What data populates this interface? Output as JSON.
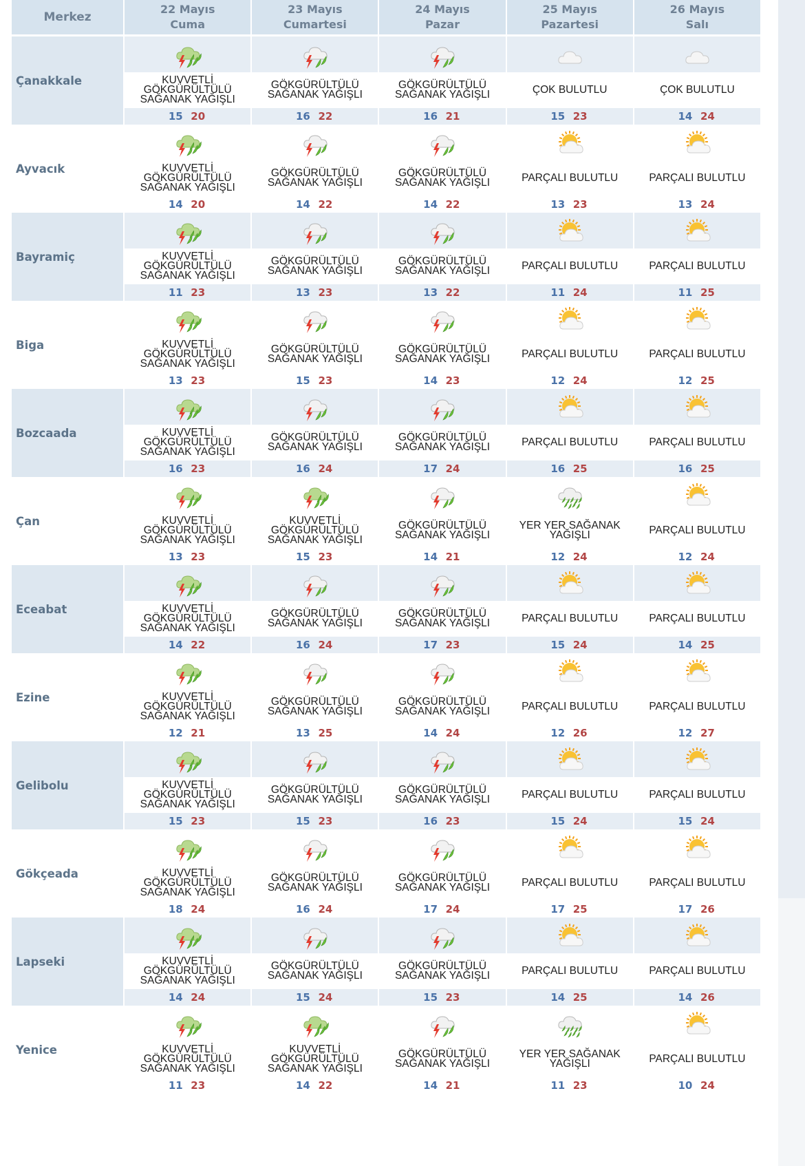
{
  "header": {
    "merkez": "Merkez",
    "days": [
      {
        "date": "22 Mayıs",
        "weekday": "Cuma"
      },
      {
        "date": "23 Mayıs",
        "weekday": "Cumartesi"
      },
      {
        "date": "24 Mayıs",
        "weekday": "Pazar"
      },
      {
        "date": "25 Mayıs",
        "weekday": "Pazartesi"
      },
      {
        "date": "26 Mayıs",
        "weekday": "Salı"
      }
    ]
  },
  "icons": {
    "heavy_thunder_shower": "heavy-thunder-shower-icon",
    "thunder_shower": "thunder-shower-icon",
    "mostly_cloudy": "mostly-cloudy-icon",
    "partly_cloudy": "partly-cloudy-icon",
    "scattered_showers": "scattered-showers-icon"
  },
  "colors": {
    "header_bg": "#d6e3ee",
    "alt_row_bg": "#e6edf4",
    "min_temp": "#4a72a8",
    "max_temp": "#b24545",
    "city_text": "#5c7389"
  },
  "rows": [
    {
      "city": "Çanakkale",
      "days": [
        {
          "icon": "heavy_thunder_shower",
          "desc": [
            "KUVVETLİ",
            "GÖKGÜRÜLTÜLÜ",
            "SAĞANAK YAĞIŞLI"
          ],
          "min": "15",
          "max": "20"
        },
        {
          "icon": "thunder_shower",
          "desc": [
            "GÖKGÜRÜLTÜLÜ",
            "SAĞANAK YAĞIŞLI"
          ],
          "min": "16",
          "max": "22"
        },
        {
          "icon": "thunder_shower",
          "desc": [
            "GÖKGÜRÜLTÜLÜ",
            "SAĞANAK YAĞIŞLI"
          ],
          "min": "16",
          "max": "21"
        },
        {
          "icon": "mostly_cloudy",
          "desc": [
            "ÇOK BULUTLU"
          ],
          "min": "15",
          "max": "23"
        },
        {
          "icon": "mostly_cloudy",
          "desc": [
            "ÇOK BULUTLU"
          ],
          "min": "14",
          "max": "24"
        }
      ]
    },
    {
      "city": "Ayvacık",
      "days": [
        {
          "icon": "heavy_thunder_shower",
          "desc": [
            "KUVVETLİ",
            "GÖKGÜRÜLTÜLÜ",
            "SAĞANAK YAĞIŞLI"
          ],
          "min": "14",
          "max": "20"
        },
        {
          "icon": "thunder_shower",
          "desc": [
            "GÖKGÜRÜLTÜLÜ",
            "SAĞANAK YAĞIŞLI"
          ],
          "min": "14",
          "max": "22"
        },
        {
          "icon": "thunder_shower",
          "desc": [
            "GÖKGÜRÜLTÜLÜ",
            "SAĞANAK YAĞIŞLI"
          ],
          "min": "14",
          "max": "22"
        },
        {
          "icon": "partly_cloudy",
          "desc": [
            "PARÇALI BULUTLU"
          ],
          "min": "13",
          "max": "23"
        },
        {
          "icon": "partly_cloudy",
          "desc": [
            "PARÇALI BULUTLU"
          ],
          "min": "13",
          "max": "24"
        }
      ]
    },
    {
      "city": "Bayramiç",
      "days": [
        {
          "icon": "heavy_thunder_shower",
          "desc": [
            "KUVVETLİ",
            "GÖKGÜRÜLTÜLÜ",
            "SAĞANAK YAĞIŞLI"
          ],
          "min": "11",
          "max": "23"
        },
        {
          "icon": "thunder_shower",
          "desc": [
            "GÖKGÜRÜLTÜLÜ",
            "SAĞANAK YAĞIŞLI"
          ],
          "min": "13",
          "max": "23"
        },
        {
          "icon": "thunder_shower",
          "desc": [
            "GÖKGÜRÜLTÜLÜ",
            "SAĞANAK YAĞIŞLI"
          ],
          "min": "13",
          "max": "22"
        },
        {
          "icon": "partly_cloudy",
          "desc": [
            "PARÇALI BULUTLU"
          ],
          "min": "11",
          "max": "24"
        },
        {
          "icon": "partly_cloudy",
          "desc": [
            "PARÇALI BULUTLU"
          ],
          "min": "11",
          "max": "25"
        }
      ]
    },
    {
      "city": "Biga",
      "days": [
        {
          "icon": "heavy_thunder_shower",
          "desc": [
            "KUVVETLİ",
            "GÖKGÜRÜLTÜLÜ",
            "SAĞANAK YAĞIŞLI"
          ],
          "min": "13",
          "max": "23"
        },
        {
          "icon": "thunder_shower",
          "desc": [
            "GÖKGÜRÜLTÜLÜ",
            "SAĞANAK YAĞIŞLI"
          ],
          "min": "15",
          "max": "23"
        },
        {
          "icon": "thunder_shower",
          "desc": [
            "GÖKGÜRÜLTÜLÜ",
            "SAĞANAK YAĞIŞLI"
          ],
          "min": "14",
          "max": "23"
        },
        {
          "icon": "partly_cloudy",
          "desc": [
            "PARÇALI BULUTLU"
          ],
          "min": "12",
          "max": "24"
        },
        {
          "icon": "partly_cloudy",
          "desc": [
            "PARÇALI BULUTLU"
          ],
          "min": "12",
          "max": "25"
        }
      ]
    },
    {
      "city": "Bozcaada",
      "days": [
        {
          "icon": "heavy_thunder_shower",
          "desc": [
            "KUVVETLİ",
            "GÖKGÜRÜLTÜLÜ",
            "SAĞANAK YAĞIŞLI"
          ],
          "min": "16",
          "max": "23"
        },
        {
          "icon": "thunder_shower",
          "desc": [
            "GÖKGÜRÜLTÜLÜ",
            "SAĞANAK YAĞIŞLI"
          ],
          "min": "16",
          "max": "24"
        },
        {
          "icon": "thunder_shower",
          "desc": [
            "GÖKGÜRÜLTÜLÜ",
            "SAĞANAK YAĞIŞLI"
          ],
          "min": "17",
          "max": "24"
        },
        {
          "icon": "partly_cloudy",
          "desc": [
            "PARÇALI BULUTLU"
          ],
          "min": "16",
          "max": "25"
        },
        {
          "icon": "partly_cloudy",
          "desc": [
            "PARÇALI BULUTLU"
          ],
          "min": "16",
          "max": "25"
        }
      ]
    },
    {
      "city": "Çan",
      "days": [
        {
          "icon": "heavy_thunder_shower",
          "desc": [
            "KUVVETLİ",
            "GÖKGÜRÜLTÜLÜ",
            "SAĞANAK YAĞIŞLI"
          ],
          "min": "13",
          "max": "23"
        },
        {
          "icon": "heavy_thunder_shower",
          "desc": [
            "KUVVETLİ",
            "GÖKGÜRÜLTÜLÜ",
            "SAĞANAK YAĞIŞLI"
          ],
          "min": "15",
          "max": "23"
        },
        {
          "icon": "thunder_shower",
          "desc": [
            "GÖKGÜRÜLTÜLÜ",
            "SAĞANAK YAĞIŞLI"
          ],
          "min": "14",
          "max": "21"
        },
        {
          "icon": "scattered_showers",
          "desc": [
            "YER YER SAĞANAK",
            "YAĞIŞLI"
          ],
          "min": "12",
          "max": "24"
        },
        {
          "icon": "partly_cloudy",
          "desc": [
            "PARÇALI BULUTLU"
          ],
          "min": "12",
          "max": "24"
        }
      ]
    },
    {
      "city": "Eceabat",
      "days": [
        {
          "icon": "heavy_thunder_shower",
          "desc": [
            "KUVVETLİ",
            "GÖKGÜRÜLTÜLÜ",
            "SAĞANAK YAĞIŞLI"
          ],
          "min": "14",
          "max": "22"
        },
        {
          "icon": "thunder_shower",
          "desc": [
            "GÖKGÜRÜLTÜLÜ",
            "SAĞANAK YAĞIŞLI"
          ],
          "min": "16",
          "max": "24"
        },
        {
          "icon": "thunder_shower",
          "desc": [
            "GÖKGÜRÜLTÜLÜ",
            "SAĞANAK YAĞIŞLI"
          ],
          "min": "17",
          "max": "23"
        },
        {
          "icon": "partly_cloudy",
          "desc": [
            "PARÇALI BULUTLU"
          ],
          "min": "15",
          "max": "24"
        },
        {
          "icon": "partly_cloudy",
          "desc": [
            "PARÇALI BULUTLU"
          ],
          "min": "14",
          "max": "25"
        }
      ]
    },
    {
      "city": "Ezine",
      "days": [
        {
          "icon": "heavy_thunder_shower",
          "desc": [
            "KUVVETLİ",
            "GÖKGÜRÜLTÜLÜ",
            "SAĞANAK YAĞIŞLI"
          ],
          "min": "12",
          "max": "21"
        },
        {
          "icon": "thunder_shower",
          "desc": [
            "GÖKGÜRÜLTÜLÜ",
            "SAĞANAK YAĞIŞLI"
          ],
          "min": "13",
          "max": "25"
        },
        {
          "icon": "thunder_shower",
          "desc": [
            "GÖKGÜRÜLTÜLÜ",
            "SAĞANAK YAĞIŞLI"
          ],
          "min": "14",
          "max": "24"
        },
        {
          "icon": "partly_cloudy",
          "desc": [
            "PARÇALI BULUTLU"
          ],
          "min": "12",
          "max": "26"
        },
        {
          "icon": "partly_cloudy",
          "desc": [
            "PARÇALI BULUTLU"
          ],
          "min": "12",
          "max": "27"
        }
      ]
    },
    {
      "city": "Gelibolu",
      "days": [
        {
          "icon": "heavy_thunder_shower",
          "desc": [
            "KUVVETLİ",
            "GÖKGÜRÜLTÜLÜ",
            "SAĞANAK YAĞIŞLI"
          ],
          "min": "15",
          "max": "23"
        },
        {
          "icon": "thunder_shower",
          "desc": [
            "GÖKGÜRÜLTÜLÜ",
            "SAĞANAK YAĞIŞLI"
          ],
          "min": "15",
          "max": "23"
        },
        {
          "icon": "thunder_shower",
          "desc": [
            "GÖKGÜRÜLTÜLÜ",
            "SAĞANAK YAĞIŞLI"
          ],
          "min": "16",
          "max": "23"
        },
        {
          "icon": "partly_cloudy",
          "desc": [
            "PARÇALI BULUTLU"
          ],
          "min": "15",
          "max": "24"
        },
        {
          "icon": "partly_cloudy",
          "desc": [
            "PARÇALI BULUTLU"
          ],
          "min": "15",
          "max": "24"
        }
      ]
    },
    {
      "city": "Gökçeada",
      "days": [
        {
          "icon": "heavy_thunder_shower",
          "desc": [
            "KUVVETLİ",
            "GÖKGÜRÜLTÜLÜ",
            "SAĞANAK YAĞIŞLI"
          ],
          "min": "18",
          "max": "24"
        },
        {
          "icon": "thunder_shower",
          "desc": [
            "GÖKGÜRÜLTÜLÜ",
            "SAĞANAK YAĞIŞLI"
          ],
          "min": "16",
          "max": "24"
        },
        {
          "icon": "thunder_shower",
          "desc": [
            "GÖKGÜRÜLTÜLÜ",
            "SAĞANAK YAĞIŞLI"
          ],
          "min": "17",
          "max": "24"
        },
        {
          "icon": "partly_cloudy",
          "desc": [
            "PARÇALI BULUTLU"
          ],
          "min": "17",
          "max": "25"
        },
        {
          "icon": "partly_cloudy",
          "desc": [
            "PARÇALI BULUTLU"
          ],
          "min": "17",
          "max": "26"
        }
      ]
    },
    {
      "city": "Lapseki",
      "days": [
        {
          "icon": "heavy_thunder_shower",
          "desc": [
            "KUVVETLİ",
            "GÖKGÜRÜLTÜLÜ",
            "SAĞANAK YAĞIŞLI"
          ],
          "min": "14",
          "max": "24"
        },
        {
          "icon": "thunder_shower",
          "desc": [
            "GÖKGÜRÜLTÜLÜ",
            "SAĞANAK YAĞIŞLI"
          ],
          "min": "15",
          "max": "24"
        },
        {
          "icon": "thunder_shower",
          "desc": [
            "GÖKGÜRÜLTÜLÜ",
            "SAĞANAK YAĞIŞLI"
          ],
          "min": "15",
          "max": "23"
        },
        {
          "icon": "partly_cloudy",
          "desc": [
            "PARÇALI BULUTLU"
          ],
          "min": "14",
          "max": "25"
        },
        {
          "icon": "partly_cloudy",
          "desc": [
            "PARÇALI BULUTLU"
          ],
          "min": "14",
          "max": "26"
        }
      ]
    },
    {
      "city": "Yenice",
      "days": [
        {
          "icon": "heavy_thunder_shower",
          "desc": [
            "KUVVETLİ",
            "GÖKGÜRÜLTÜLÜ",
            "SAĞANAK YAĞIŞLI"
          ],
          "min": "11",
          "max": "23"
        },
        {
          "icon": "heavy_thunder_shower",
          "desc": [
            "KUVVETLİ",
            "GÖKGÜRÜLTÜLÜ",
            "SAĞANAK YAĞIŞLI"
          ],
          "min": "14",
          "max": "22"
        },
        {
          "icon": "thunder_shower",
          "desc": [
            "GÖKGÜRÜLTÜLÜ",
            "SAĞANAK YAĞIŞLI"
          ],
          "min": "14",
          "max": "21"
        },
        {
          "icon": "scattered_showers",
          "desc": [
            "YER YER SAĞANAK",
            "YAĞIŞLI"
          ],
          "min": "11",
          "max": "23"
        },
        {
          "icon": "partly_cloudy",
          "desc": [
            "PARÇALI BULUTLU"
          ],
          "min": "10",
          "max": "24"
        }
      ]
    }
  ]
}
